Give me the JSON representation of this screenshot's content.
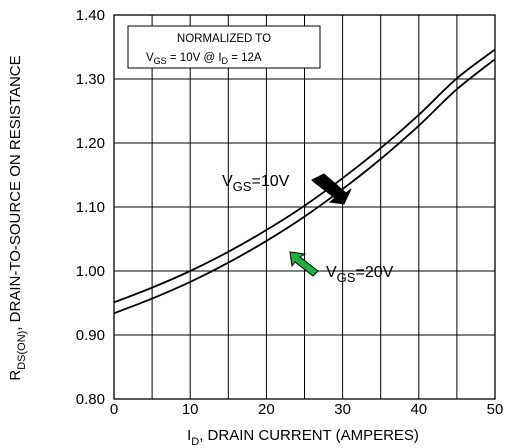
{
  "chart_data": {
    "type": "line",
    "xlabel": {
      "main": "I",
      "sub": "D",
      "rest": ", DRAIN CURRENT (AMPERES)"
    },
    "ylabel": {
      "main": "R",
      "sub": "DS(ON)",
      "rest": ", DRAIN-TO-SOURCE ON RESISTANCE"
    },
    "xlim": [
      0,
      50
    ],
    "ylim": [
      0.8,
      1.4
    ],
    "x_ticks": [
      0,
      10,
      20,
      30,
      40,
      50
    ],
    "x_tick_labels": [
      "0",
      "10",
      "20",
      "30",
      "40",
      "50"
    ],
    "y_ticks": [
      0.8,
      0.9,
      1.0,
      1.1,
      1.2,
      1.3,
      1.4
    ],
    "y_tick_labels": [
      "0.80",
      "0.90",
      "1.00",
      "1.10",
      "1.20",
      "1.30",
      "1.40"
    ],
    "grid": true,
    "note": {
      "line1": "NORMALIZED TO",
      "vgs_main": "V",
      "vgs_sub": "GS",
      "vgs_rest": " = 10V  @  I",
      "id_sub": "D",
      "id_rest": " = 12A"
    },
    "series": [
      {
        "label_main": "V",
        "label_sub": "GS",
        "label_rest": "=10V",
        "marker_color": "#000000",
        "x": [
          0,
          5,
          10,
          15,
          20,
          25,
          30,
          35,
          40,
          45,
          50
        ],
        "y": [
          0.951,
          0.974,
          1.0,
          1.03,
          1.064,
          1.102,
          1.145,
          1.192,
          1.244,
          1.301,
          1.346
        ]
      },
      {
        "label_main": "V",
        "label_sub": "GS",
        "label_rest": "=20V",
        "marker_color": "#1fb040",
        "x": [
          0,
          5,
          10,
          15,
          20,
          25,
          30,
          35,
          40,
          45,
          50
        ],
        "y": [
          0.934,
          0.957,
          0.983,
          1.013,
          1.047,
          1.085,
          1.128,
          1.175,
          1.227,
          1.284,
          1.331
        ]
      }
    ]
  }
}
